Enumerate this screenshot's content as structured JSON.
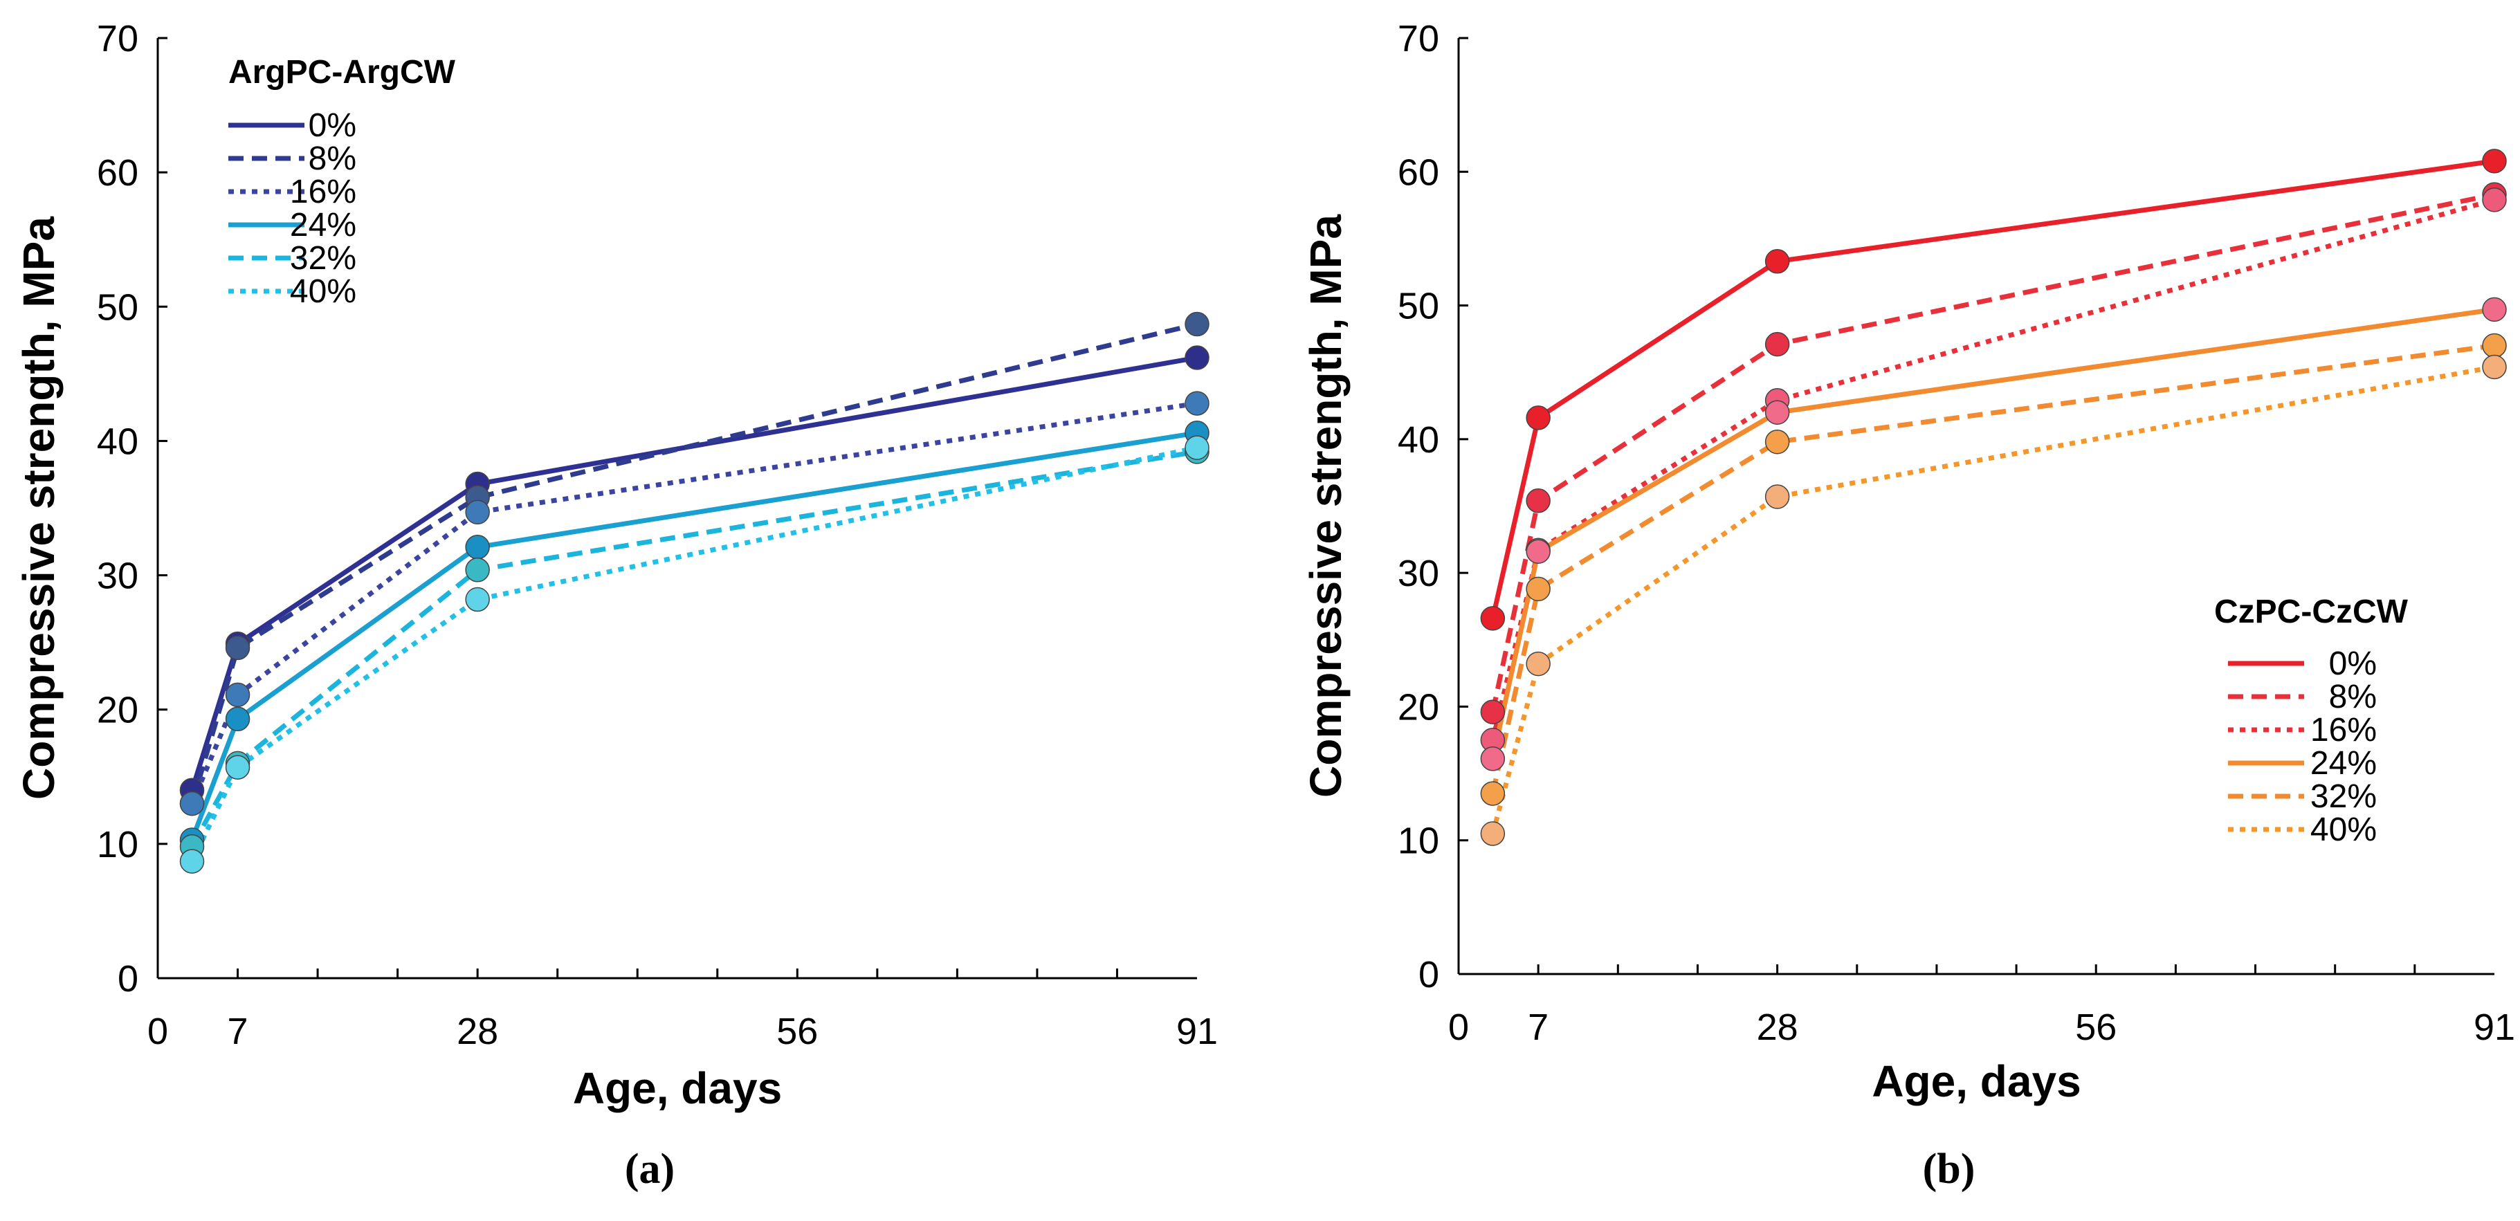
{
  "chart_data": [
    {
      "type": "line",
      "panel_label": "(a)",
      "legend_title": "ArgPC-ArgCW",
      "legend_placement": "top-left",
      "xlabel": "Age, days",
      "ylabel": "Compressive strength, MPa",
      "x": [
        3,
        7,
        28,
        91
      ],
      "x_ticks": [
        0,
        7,
        28,
        56,
        91
      ],
      "y_ticks": [
        0,
        10,
        20,
        30,
        40,
        50,
        60,
        70
      ],
      "xlim": [
        0,
        91
      ],
      "ylim": [
        0,
        70
      ],
      "series": [
        {
          "name": "0%",
          "values": [
            14.0,
            24.9,
            36.8,
            46.2
          ],
          "color": "#2e3192",
          "marker": "#2e2f8a",
          "dash": "solid"
        },
        {
          "name": "8%",
          "values": [
            13.0,
            24.6,
            35.8,
            48.7
          ],
          "color": "#2e3b8f",
          "marker": "#3d5a8f",
          "dash": "dashed"
        },
        {
          "name": "16%",
          "values": [
            13.0,
            21.1,
            34.7,
            42.8
          ],
          "color": "#3b44a0",
          "marker": "#3f7ab8",
          "dash": "dotted"
        },
        {
          "name": "24%",
          "values": [
            10.3,
            19.3,
            32.1,
            40.6
          ],
          "color": "#19a0d0",
          "marker": "#1a8fc4",
          "dash": "solid"
        },
        {
          "name": "32%",
          "values": [
            9.8,
            16.0,
            30.4,
            39.2
          ],
          "color": "#1ab4dc",
          "marker": "#3ab9c4",
          "dash": "dashed"
        },
        {
          "name": "40%",
          "values": [
            8.7,
            15.7,
            28.2,
            39.5
          ],
          "color": "#22c0e8",
          "marker": "#5fd3e8",
          "dash": "dotted"
        }
      ]
    },
    {
      "type": "line",
      "panel_label": "(b)",
      "legend_title": "CzPC-CzCW",
      "legend_placement": "center-right",
      "xlabel": "Age, days",
      "ylabel": "Compressive strength, MPa",
      "x": [
        3,
        7,
        28,
        91
      ],
      "x_ticks": [
        0,
        7,
        28,
        56,
        91
      ],
      "y_ticks": [
        0,
        10,
        20,
        30,
        40,
        50,
        60,
        70
      ],
      "xlim": [
        0,
        91
      ],
      "ylim": [
        0,
        70
      ],
      "series": [
        {
          "name": "0%",
          "values": [
            26.6,
            41.6,
            53.3,
            60.8
          ],
          "color": "#e8202a",
          "marker": "#e8202a",
          "dash": "solid"
        },
        {
          "name": "8%",
          "values": [
            19.6,
            35.4,
            47.1,
            58.3
          ],
          "color": "#e8303a",
          "marker": "#e63146",
          "dash": "dashed"
        },
        {
          "name": "16%",
          "values": [
            17.5,
            31.7,
            42.9,
            57.9
          ],
          "color": "#e8303a",
          "marker": "#ee5a7a",
          "dash": "dotted"
        },
        {
          "name": "24%",
          "values": [
            16.1,
            31.6,
            42.0,
            49.7
          ],
          "color": "#f28a30",
          "marker": "#f06a8a",
          "dash": "solid"
        },
        {
          "name": "32%",
          "values": [
            13.5,
            28.8,
            39.8,
            47.0
          ],
          "color": "#f28a30",
          "marker": "#f4a04a",
          "dash": "dashed"
        },
        {
          "name": "40%",
          "values": [
            10.5,
            23.2,
            35.7,
            45.4
          ],
          "color": "#f5962a",
          "marker": "#f4ae7a",
          "dash": "dotted"
        }
      ]
    }
  ]
}
